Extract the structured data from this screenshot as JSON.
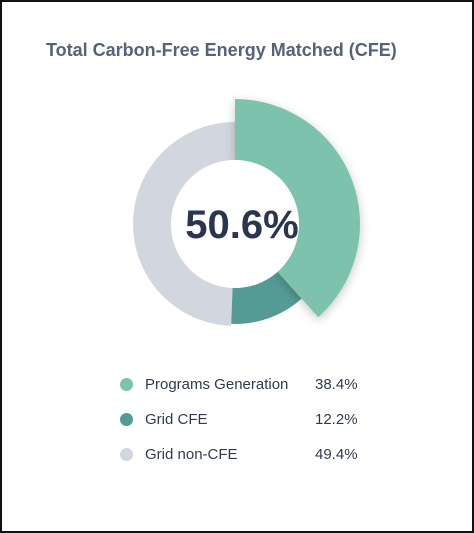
{
  "chart_data": {
    "type": "pie",
    "title": "Total Carbon-Free Energy Matched (CFE)",
    "center_label": "50.6%",
    "categories": [
      "Programs Generation",
      "Grid CFE",
      "Grid non-CFE"
    ],
    "values": [
      38.4,
      12.2,
      49.4
    ],
    "value_labels": [
      "38.4%",
      "12.2%",
      "49.4%"
    ],
    "colors": [
      "#7cc2ad",
      "#549a95",
      "#d2d6de"
    ],
    "legend_position": "bottom"
  }
}
